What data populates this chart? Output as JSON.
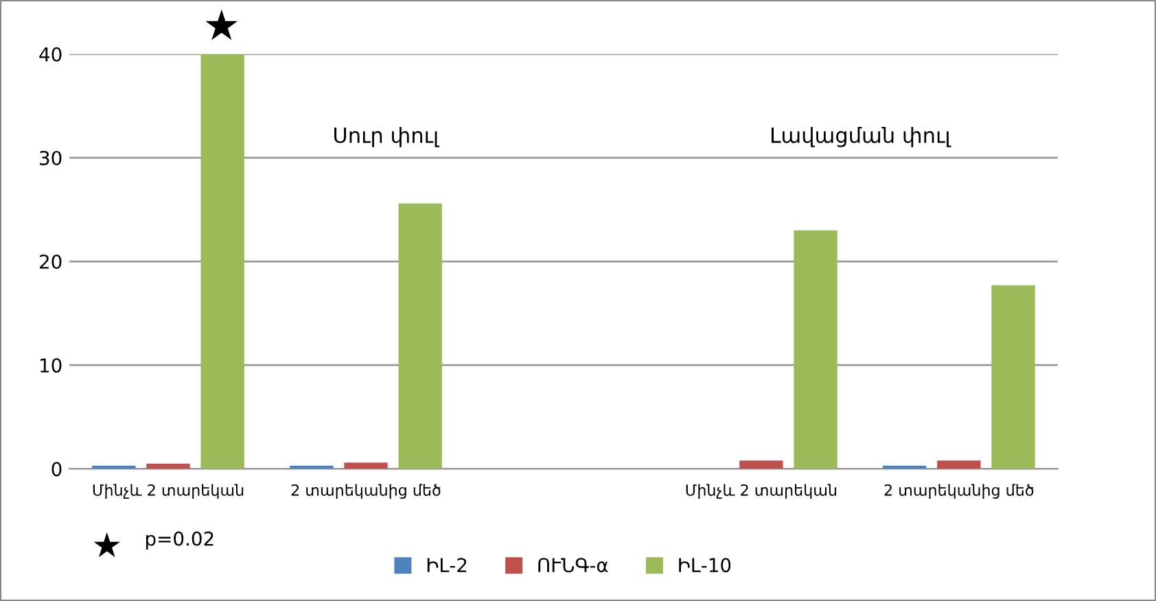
{
  "chart_data": {
    "type": "bar",
    "categories": [
      "Մինչև 2 տարեկան",
      "2 տարեկանից մեծ",
      null,
      "Մինչև 2 տարեկան",
      "2 տարեկանից մեծ"
    ],
    "series": [
      {
        "name": "ԻԼ-2",
        "color": "#4f81bd",
        "values": [
          0.3,
          0.3,
          null,
          null,
          0.3
        ]
      },
      {
        "name": "ՈՒՆԳ-α",
        "color": "#c0504d",
        "values": [
          0.5,
          0.6,
          null,
          0.8,
          0.8
        ]
      },
      {
        "name": "ԻԼ-10",
        "color": "#9bbb59",
        "values": [
          40,
          25.6,
          null,
          23,
          17.7
        ]
      }
    ],
    "ylim": [
      0,
      40
    ],
    "yticks": [
      0,
      10,
      20,
      30,
      40
    ],
    "grid": "y",
    "legend": "bottom",
    "annotations": [
      "Սուր փուլ",
      "Լավացման փուլ",
      "★",
      "★",
      "p=0.02"
    ]
  }
}
